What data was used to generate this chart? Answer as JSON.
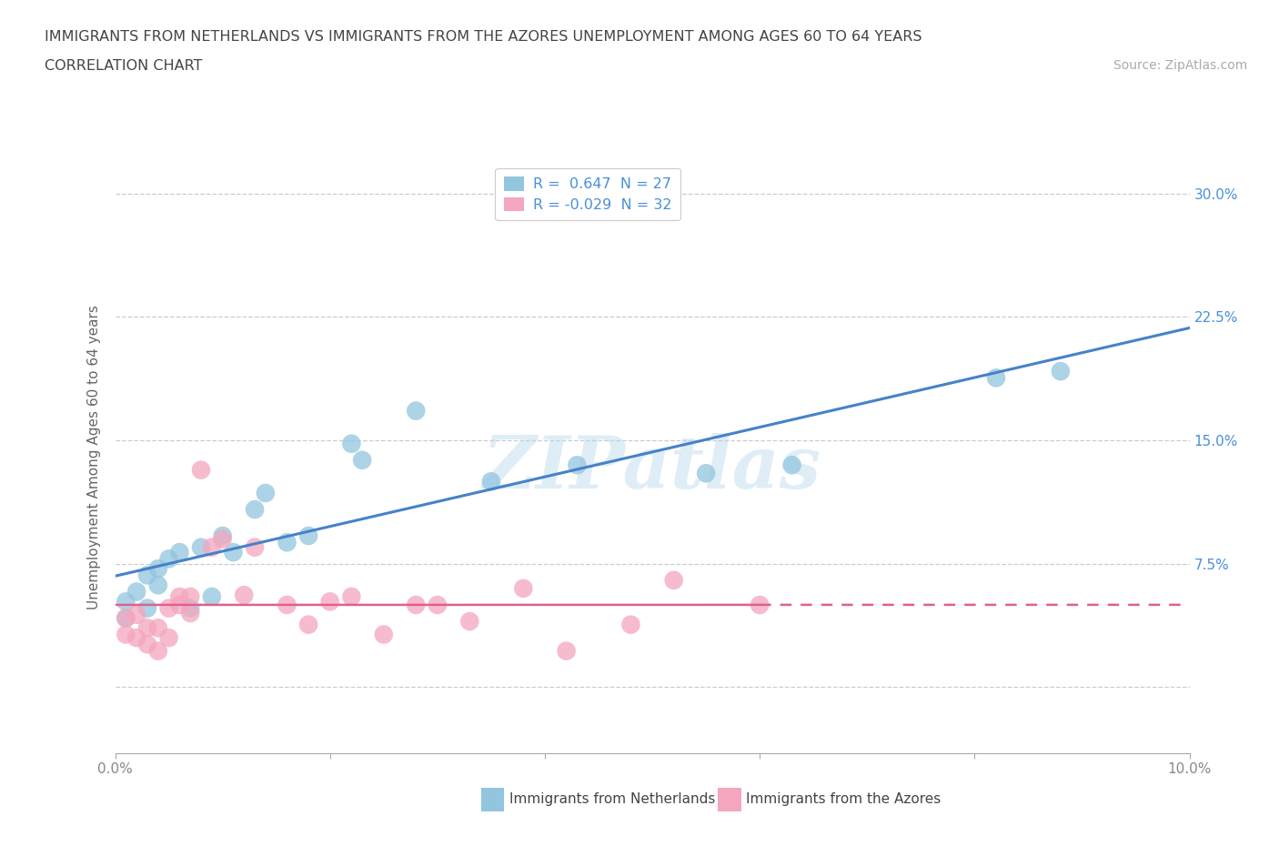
{
  "title_line1": "IMMIGRANTS FROM NETHERLANDS VS IMMIGRANTS FROM THE AZORES UNEMPLOYMENT AMONG AGES 60 TO 64 YEARS",
  "title_line2": "CORRELATION CHART",
  "source_text": "Source: ZipAtlas.com",
  "ylabel": "Unemployment Among Ages 60 to 64 years",
  "xlim": [
    0.0,
    0.1
  ],
  "ylim": [
    -0.04,
    0.32
  ],
  "xticks": [
    0.0,
    0.02,
    0.04,
    0.06,
    0.08,
    0.1
  ],
  "yticks": [
    0.0,
    0.075,
    0.15,
    0.225,
    0.3
  ],
  "right_ytick_labels": [
    "",
    "7.5%",
    "15.0%",
    "22.5%",
    "30.0%"
  ],
  "xtick_labels": [
    "0.0%",
    "",
    "",
    "",
    "",
    "10.0%"
  ],
  "watermark": "ZIPatlas",
  "legend_r1": "R =  0.647  N = 27",
  "legend_r2": "R = -0.029  N = 32",
  "blue_color": "#92c5de",
  "pink_color": "#f4a6be",
  "blue_line_color": "#4682c8",
  "pink_line_color": "#e06090",
  "netherlands_x": [
    0.001,
    0.001,
    0.002,
    0.003,
    0.003,
    0.004,
    0.004,
    0.005,
    0.006,
    0.007,
    0.008,
    0.009,
    0.01,
    0.011,
    0.013,
    0.014,
    0.016,
    0.018,
    0.022,
    0.023,
    0.028,
    0.035,
    0.043,
    0.055,
    0.063,
    0.082,
    0.088
  ],
  "netherlands_y": [
    0.042,
    0.052,
    0.058,
    0.068,
    0.048,
    0.072,
    0.062,
    0.078,
    0.082,
    0.048,
    0.085,
    0.055,
    0.092,
    0.082,
    0.108,
    0.118,
    0.088,
    0.092,
    0.148,
    0.138,
    0.168,
    0.125,
    0.135,
    0.13,
    0.135,
    0.188,
    0.192
  ],
  "azores_x": [
    0.001,
    0.001,
    0.002,
    0.002,
    0.003,
    0.003,
    0.004,
    0.004,
    0.005,
    0.005,
    0.006,
    0.006,
    0.007,
    0.007,
    0.008,
    0.009,
    0.01,
    0.012,
    0.013,
    0.016,
    0.018,
    0.02,
    0.022,
    0.025,
    0.028,
    0.03,
    0.033,
    0.038,
    0.042,
    0.048,
    0.052,
    0.06
  ],
  "azores_y": [
    0.042,
    0.032,
    0.03,
    0.044,
    0.036,
    0.026,
    0.022,
    0.036,
    0.048,
    0.03,
    0.05,
    0.055,
    0.055,
    0.045,
    0.132,
    0.085,
    0.09,
    0.056,
    0.085,
    0.05,
    0.038,
    0.052,
    0.055,
    0.032,
    0.05,
    0.05,
    0.04,
    0.06,
    0.022,
    0.038,
    0.065,
    0.05
  ],
  "bg_color": "#ffffff",
  "grid_color": "#cccccc",
  "title_color": "#444444",
  "axis_label_color": "#666666",
  "right_ytick_color": "#4a90d9",
  "bottom_legend_label1": "Immigrants from Netherlands",
  "bottom_legend_label2": "Immigrants from the Azores"
}
